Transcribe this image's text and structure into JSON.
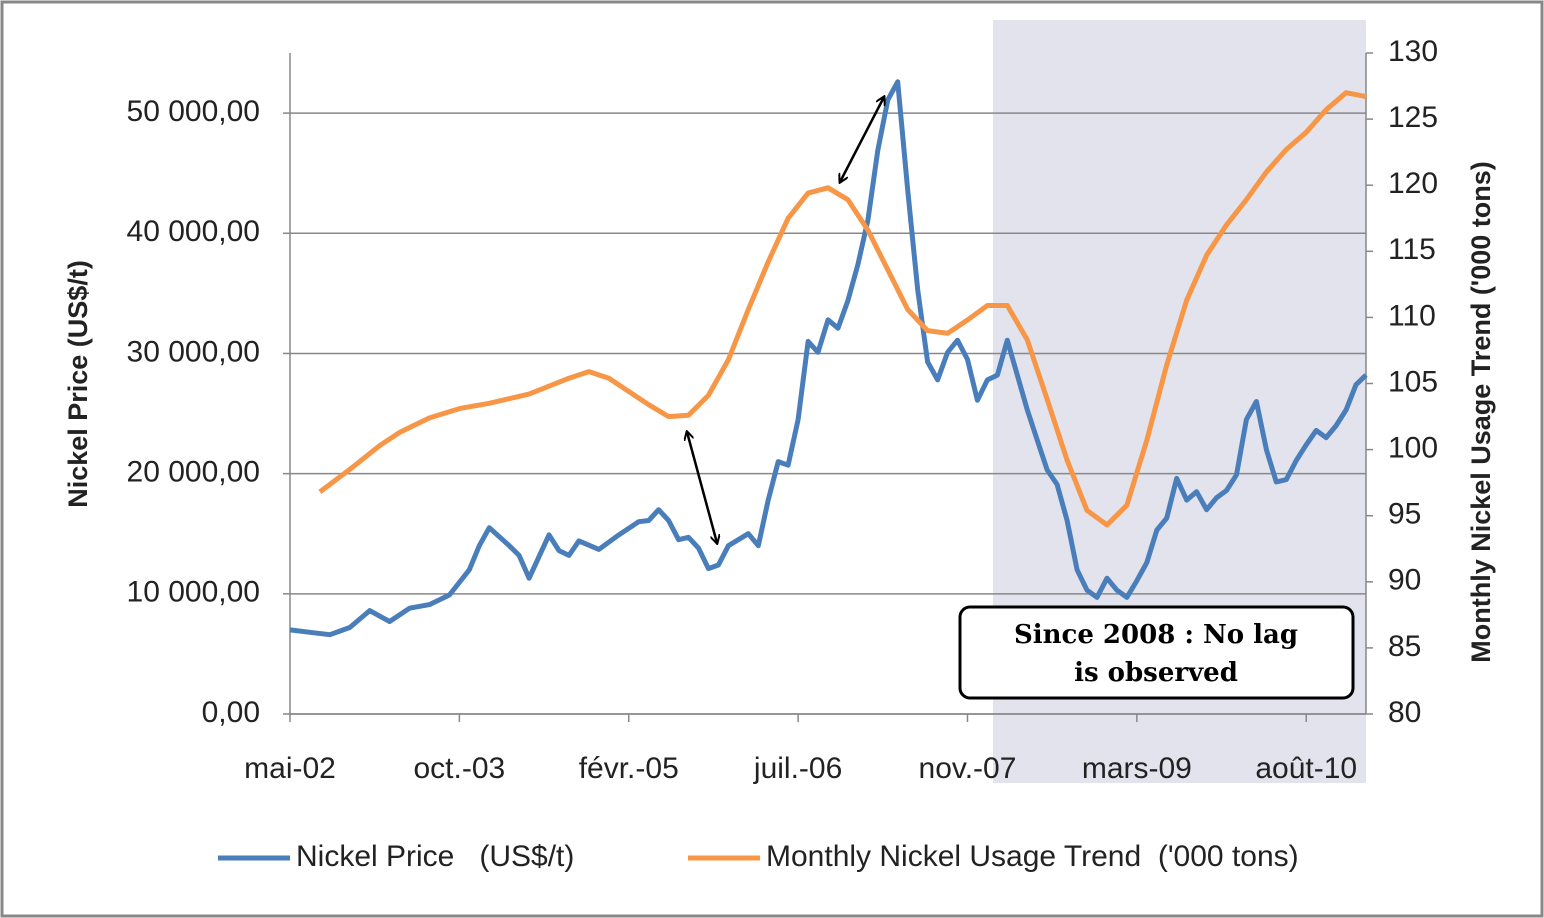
{
  "chart_data": {
    "type": "line",
    "y_label": "Nickel Price (US$/t)",
    "y2_label": "Monthly Nickel Usage Trend ('000 tons)",
    "xlim": [
      0,
      108
    ],
    "xticks": [
      {
        "value": 0,
        "label": "mai-02"
      },
      {
        "value": 17,
        "label": "oct.-03"
      },
      {
        "value": 34,
        "label": "févr.-05"
      },
      {
        "value": 51,
        "label": "juil.-06"
      },
      {
        "value": 68,
        "label": "nov.-07"
      },
      {
        "value": 85,
        "label": "mars-09"
      },
      {
        "value": 102,
        "label": "août-10"
      }
    ],
    "ylim": [
      0,
      55000
    ],
    "yticks": [
      {
        "value": 0,
        "label": "0,00"
      },
      {
        "value": 10000,
        "label": "10 000,00"
      },
      {
        "value": 20000,
        "label": "20 000,00"
      },
      {
        "value": 30000,
        "label": "30 000,00"
      },
      {
        "value": 40000,
        "label": "40 000,00"
      },
      {
        "value": 50000,
        "label": "50 000,00"
      }
    ],
    "y2lim": [
      80,
      130
    ],
    "y2ticks": [
      80,
      85,
      90,
      95,
      100,
      105,
      110,
      115,
      120,
      125,
      130
    ],
    "grid": true,
    "legend": "bottom",
    "annotation": [
      "Since 2008 : No lag",
      "is observed"
    ],
    "series": [
      {
        "name": "Nickel Price   (US$/t)",
        "color": "#4a7ebb",
        "x": [
          0,
          2,
          4,
          6,
          8,
          10,
          12,
          14,
          16,
          18,
          19,
          20,
          22,
          23,
          24,
          26,
          27,
          28,
          29,
          31,
          33,
          35,
          36,
          37,
          38,
          39,
          40,
          41,
          42,
          43,
          44,
          46,
          47,
          48,
          49,
          50,
          51,
          52,
          53,
          54,
          55,
          56,
          57,
          58,
          59,
          60,
          61,
          62,
          63,
          64,
          65,
          66,
          67,
          68,
          69,
          70,
          71,
          72,
          73,
          74,
          75,
          76,
          77,
          78,
          79,
          80,
          81,
          82,
          83,
          84,
          85,
          86,
          87,
          88,
          89,
          90,
          91,
          92,
          93,
          94,
          95,
          96,
          97,
          98,
          99,
          100,
          101,
          102,
          103,
          104,
          105,
          106,
          107,
          108
        ],
        "values": [
          7000,
          6800,
          6600,
          7200,
          8600,
          7700,
          8800,
          9100,
          9900,
          12000,
          14000,
          15500,
          14000,
          13200,
          11300,
          14900,
          13600,
          13200,
          14400,
          13700,
          14900,
          16000,
          16100,
          17000,
          16100,
          14500,
          14700,
          13800,
          12100,
          12400,
          14000,
          15000,
          14000,
          17800,
          21000,
          20700,
          24500,
          31000,
          30100,
          32800,
          32100,
          34400,
          37400,
          41100,
          46900,
          51100,
          52600,
          43600,
          35300,
          29300,
          27800,
          30100,
          31100,
          29500,
          26100,
          27800,
          28200,
          31100,
          28200,
          25300,
          22800,
          20300,
          19100,
          16100,
          12000,
          10300,
          9700,
          11300,
          10300,
          9700,
          11100,
          12600,
          15300,
          16300,
          19600,
          17800,
          18500,
          17000,
          18000,
          18600,
          19900,
          24500,
          26000,
          22000,
          19300,
          19500,
          21100,
          22400,
          23600,
          23000,
          24000,
          25300,
          27400,
          28200
        ]
      },
      {
        "name": "Monthly Nickel Usage Trend  ('000 tons)",
        "color": "#f79646",
        "axis": "y2",
        "x": [
          3,
          6,
          9,
          11,
          14,
          17,
          20,
          24,
          28,
          30,
          32,
          34,
          36,
          38,
          40,
          42,
          44,
          46,
          48,
          50,
          52,
          54,
          56,
          58,
          60,
          62,
          64,
          66,
          68,
          70,
          72,
          74,
          76,
          78,
          80,
          82,
          84,
          86,
          88,
          90,
          92,
          94,
          96,
          98,
          100,
          102,
          104,
          106,
          108
        ],
        "values": [
          96.8,
          98.5,
          100.3,
          101.3,
          102.4,
          103.1,
          103.5,
          104.2,
          105.4,
          105.9,
          105.4,
          104.4,
          103.4,
          102.5,
          102.6,
          104.1,
          106.8,
          110.6,
          114.2,
          117.5,
          119.4,
          119.8,
          118.9,
          116.6,
          113.6,
          110.6,
          109.0,
          108.8,
          109.8,
          110.9,
          110.9,
          108.3,
          103.8,
          99.2,
          95.4,
          94.3,
          95.8,
          100.7,
          106.4,
          111.3,
          114.7,
          117.0,
          118.9,
          121.0,
          122.7,
          124.0,
          125.7,
          127.0,
          126.7
        ]
      }
    ]
  }
}
